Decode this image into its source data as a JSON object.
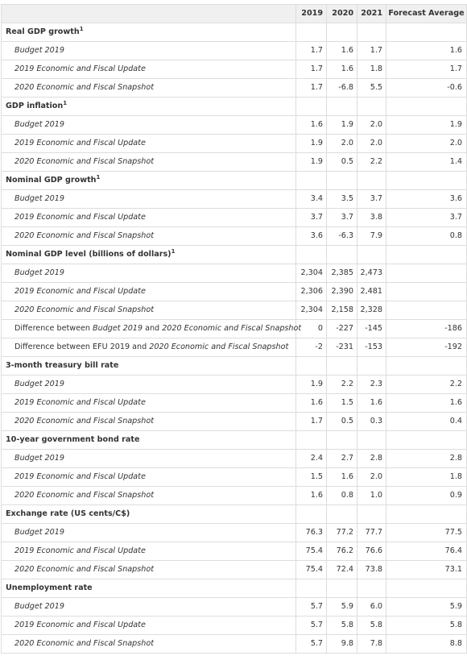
{
  "header": {
    "label": "",
    "years": [
      "2019",
      "2020",
      "2021"
    ],
    "forecast_average": "Forecast Average"
  },
  "sections": [
    {
      "title": "Real GDP growth",
      "sup": "1",
      "rows": [
        {
          "label": "Budget 2019",
          "y2019": "1.7",
          "y2020": "1.6",
          "y2021": "1.7",
          "avg": "1.6"
        },
        {
          "label": "2019 Economic and Fiscal Update",
          "y2019": "1.7",
          "y2020": "1.6",
          "y2021": "1.8",
          "avg": "1.7"
        },
        {
          "label": "2020 Economic and Fiscal Snapshot",
          "y2019": "1.7",
          "y2020": "-6.8",
          "y2021": "5.5",
          "avg": "-0.6"
        }
      ]
    },
    {
      "title": "GDP inflation",
      "sup": "1",
      "rows": [
        {
          "label": "Budget 2019",
          "y2019": "1.6",
          "y2020": "1.9",
          "y2021": "2.0",
          "avg": "1.9"
        },
        {
          "label": "2019 Economic and Fiscal Update",
          "y2019": "1.9",
          "y2020": "2.0",
          "y2021": "2.0",
          "avg": "2.0"
        },
        {
          "label": "2020 Economic and Fiscal Snapshot",
          "y2019": "1.9",
          "y2020": "0.5",
          "y2021": "2.2",
          "avg": "1.4"
        }
      ]
    },
    {
      "title": "Nominal GDP growth",
      "sup": "1",
      "rows": [
        {
          "label": "Budget 2019",
          "y2019": "3.4",
          "y2020": "3.5",
          "y2021": "3.7",
          "avg": "3.6"
        },
        {
          "label": "2019 Economic and Fiscal Update",
          "y2019": "3.7",
          "y2020": "3.7",
          "y2021": "3.8",
          "avg": "3.7"
        },
        {
          "label": "2020 Economic and Fiscal Snapshot",
          "y2019": "3.6",
          "y2020": "-6.3",
          "y2021": "7.9",
          "avg": "0.8"
        }
      ]
    },
    {
      "title": "Nominal GDP level (billions of dollars)",
      "sup": "1",
      "rows": [
        {
          "label": "Budget 2019",
          "y2019": "2,304",
          "y2020": "2,385",
          "y2021": "2,473",
          "avg": ""
        },
        {
          "label": "2019 Economic and Fiscal Update",
          "y2019": "2,306",
          "y2020": "2,390",
          "y2021": "2,481",
          "avg": ""
        },
        {
          "label": "2020 Economic and Fiscal Snapshot",
          "y2019": "2,304",
          "y2020": "2,158",
          "y2021": "2,328",
          "avg": ""
        },
        {
          "kind": "diff",
          "parts": [
            "Difference between ",
            "Budget 2019",
            " and ",
            "2020 Economic and Fiscal Snapshot"
          ],
          "y2019": "0",
          "y2020": "-227",
          "y2021": "-145",
          "avg": "-186"
        },
        {
          "kind": "diff",
          "parts": [
            "Difference between EFU 2019 and ",
            "2020 Economic and Fiscal Snapshot",
            "",
            ""
          ],
          "y2019": "-2",
          "y2020": "-231",
          "y2021": "-153",
          "avg": "-192"
        }
      ]
    },
    {
      "title": "3-month treasury bill rate",
      "sup": "",
      "rows": [
        {
          "label": "Budget 2019",
          "y2019": "1.9",
          "y2020": "2.2",
          "y2021": "2.3",
          "avg": "2.2"
        },
        {
          "label": "2019 Economic and Fiscal Update",
          "y2019": "1.6",
          "y2020": "1.5",
          "y2021": "1.6",
          "avg": "1.6"
        },
        {
          "label": "2020 Economic and Fiscal Snapshot",
          "y2019": "1.7",
          "y2020": "0.5",
          "y2021": "0.3",
          "avg": "0.4"
        }
      ]
    },
    {
      "title": "10-year government bond rate",
      "sup": "",
      "rows": [
        {
          "label": "Budget 2019",
          "y2019": "2.4",
          "y2020": "2.7",
          "y2021": "2.8",
          "avg": "2.8"
        },
        {
          "label": "2019 Economic and Fiscal Update",
          "y2019": "1.5",
          "y2020": "1.6",
          "y2021": "2.0",
          "avg": "1.8"
        },
        {
          "label": "2020 Economic and Fiscal Snapshot",
          "y2019": "1.6",
          "y2020": "0.8",
          "y2021": "1.0",
          "avg": "0.9"
        }
      ]
    },
    {
      "title": "Exchange rate (US cents/C$)",
      "sup": "",
      "rows": [
        {
          "label": "Budget 2019",
          "y2019": "76.3",
          "y2020": "77.2",
          "y2021": "77.7",
          "avg": "77.5"
        },
        {
          "label": "2019 Economic and Fiscal Update",
          "y2019": "75.4",
          "y2020": "76.2",
          "y2021": "76.6",
          "avg": "76.4"
        },
        {
          "label": "2020 Economic and Fiscal Snapshot",
          "y2019": "75.4",
          "y2020": "72.4",
          "y2021": "73.8",
          "avg": "73.1"
        }
      ]
    },
    {
      "title": "Unemployment rate",
      "sup": "",
      "rows": [
        {
          "label": "Budget 2019",
          "y2019": "5.7",
          "y2020": "5.9",
          "y2021": "6.0",
          "avg": "5.9"
        },
        {
          "label": "2019 Economic and Fiscal Update",
          "y2019": "5.7",
          "y2020": "5.8",
          "y2021": "5.8",
          "avg": "5.8"
        },
        {
          "label": "2020 Economic and Fiscal Snapshot",
          "y2019": "5.7",
          "y2020": "9.8",
          "y2021": "7.8",
          "avg": "8.8"
        }
      ]
    }
  ]
}
